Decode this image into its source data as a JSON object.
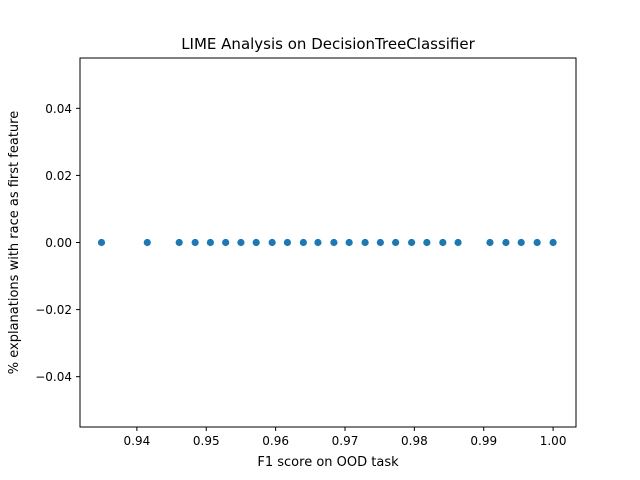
{
  "chart_data": {
    "type": "scatter",
    "title": "LIME Analysis on DecisionTreeClassifier",
    "xlabel": "F1 score on OOD task",
    "ylabel": "% explanations with race as first feature",
    "xlim": [
      0.9318,
      1.0033
    ],
    "ylim": [
      -0.055,
      0.055
    ],
    "xticks": [
      0.94,
      0.95,
      0.96,
      0.97,
      0.98,
      0.99,
      1.0
    ],
    "xtick_labels": [
      "0.94",
      "0.95",
      "0.96",
      "0.97",
      "0.98",
      "0.99",
      "1.00"
    ],
    "yticks": [
      -0.04,
      -0.02,
      0.0,
      0.02,
      0.04
    ],
    "ytick_labels": [
      "−0.04",
      "−0.02",
      "0.00",
      "0.02",
      "0.04"
    ],
    "grid": false,
    "marker_color": "#1f77b4",
    "points": [
      {
        "x": 0.9349,
        "y": 0.0
      },
      {
        "x": 0.9415,
        "y": 0.0
      },
      {
        "x": 0.9461,
        "y": 0.0
      },
      {
        "x": 0.9484,
        "y": 0.0
      },
      {
        "x": 0.9506,
        "y": 0.0
      },
      {
        "x": 0.9528,
        "y": 0.0
      },
      {
        "x": 0.955,
        "y": 0.0
      },
      {
        "x": 0.9572,
        "y": 0.0
      },
      {
        "x": 0.9595,
        "y": 0.0
      },
      {
        "x": 0.9617,
        "y": 0.0
      },
      {
        "x": 0.964,
        "y": 0.0
      },
      {
        "x": 0.9661,
        "y": 0.0
      },
      {
        "x": 0.9684,
        "y": 0.0
      },
      {
        "x": 0.9706,
        "y": 0.0
      },
      {
        "x": 0.9729,
        "y": 0.0
      },
      {
        "x": 0.9751,
        "y": 0.0
      },
      {
        "x": 0.9773,
        "y": 0.0
      },
      {
        "x": 0.9796,
        "y": 0.0
      },
      {
        "x": 0.9818,
        "y": 0.0
      },
      {
        "x": 0.9841,
        "y": 0.0
      },
      {
        "x": 0.9863,
        "y": 0.0
      },
      {
        "x": 0.9909,
        "y": 0.0
      },
      {
        "x": 0.9932,
        "y": 0.0
      },
      {
        "x": 0.9954,
        "y": 0.0
      },
      {
        "x": 0.9977,
        "y": 0.0
      },
      {
        "x": 1.0,
        "y": 0.0
      }
    ]
  }
}
